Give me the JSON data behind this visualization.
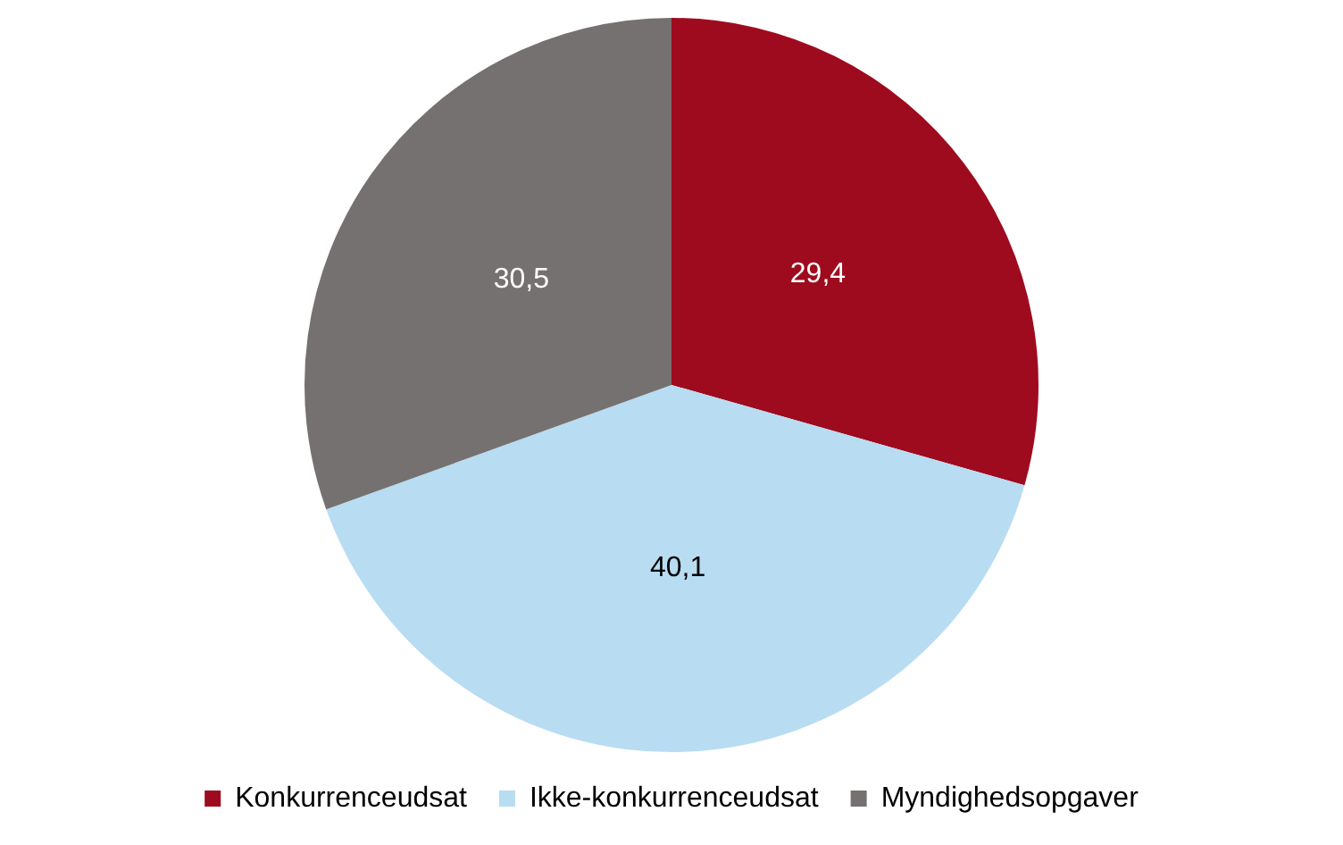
{
  "chart_data": {
    "type": "pie",
    "categories": [
      "Konkurrenceudsat",
      "Ikke-konkurrenceudsat",
      "Myndighedsopgaver"
    ],
    "values": [
      29.4,
      40.1,
      30.5
    ],
    "colors": [
      "#9e0b1e",
      "#b8dcf2",
      "#767171"
    ],
    "value_labels": [
      "29,4",
      "40,1",
      "30,5"
    ],
    "legend": "bottom"
  }
}
